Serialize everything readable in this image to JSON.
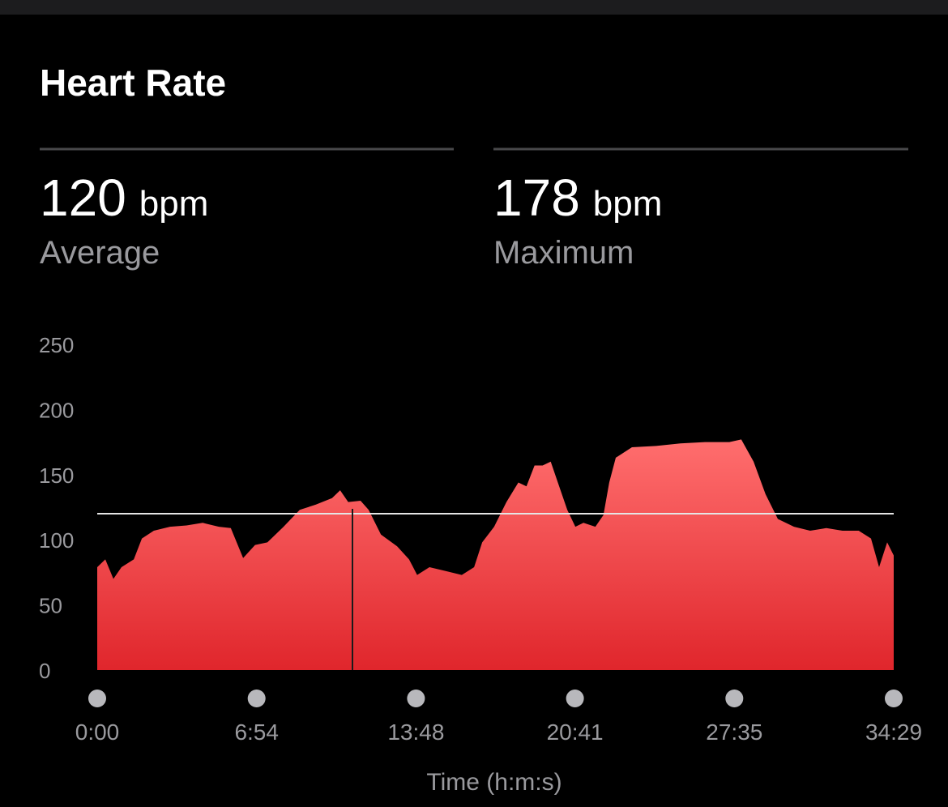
{
  "header": {
    "title": "Heart Rate"
  },
  "stats": [
    {
      "value": 120,
      "unit": "bpm",
      "label": "Average"
    },
    {
      "value": 178,
      "unit": "bpm",
      "label": "Maximum"
    }
  ],
  "chart_data": {
    "type": "area",
    "color": "#ff5a5f",
    "x_label": "Time (h:m:s)",
    "x": [
      0,
      21,
      42,
      63,
      95,
      116,
      147,
      189,
      232,
      274,
      316,
      347,
      379,
      410,
      442,
      484,
      526,
      568,
      610,
      631,
      652,
      684,
      705,
      737,
      779,
      810,
      831,
      863,
      905,
      947,
      979,
      1000,
      1031,
      1063,
      1094,
      1115,
      1136,
      1157,
      1178,
      1200,
      1221,
      1242,
      1263,
      1294,
      1315,
      1330,
      1347,
      1389,
      1452,
      1515,
      1579,
      1642,
      1673,
      1705,
      1736,
      1768,
      1810,
      1852,
      1894,
      1936,
      1978,
      2010,
      2031,
      2052,
      2069
    ],
    "values": [
      79,
      85,
      70,
      79,
      85,
      101,
      107,
      110,
      111,
      113,
      110,
      109,
      86,
      96,
      98,
      110,
      123,
      127,
      132,
      138,
      129,
      130,
      123,
      104,
      95,
      85,
      73,
      79,
      76,
      73,
      79,
      98,
      110,
      129,
      144,
      141,
      157,
      157,
      160,
      141,
      123,
      110,
      113,
      110,
      119,
      144,
      163,
      171,
      172,
      174,
      175,
      175,
      177,
      160,
      135,
      116,
      110,
      107,
      109,
      107,
      107,
      101,
      79,
      98,
      88
    ],
    "xlim": [
      0,
      2069
    ],
    "xticks": [
      {
        "value": 0,
        "label": "0:00"
      },
      {
        "value": 414,
        "label": "6:54"
      },
      {
        "value": 828,
        "label": "13:48"
      },
      {
        "value": 1241,
        "label": "20:41"
      },
      {
        "value": 1655,
        "label": "27:35"
      },
      {
        "value": 2069,
        "label": "34:29"
      }
    ],
    "ylim": [
      0,
      250
    ],
    "yticks": [
      0,
      50,
      100,
      150,
      200,
      250
    ],
    "cursor_x": 663
  }
}
